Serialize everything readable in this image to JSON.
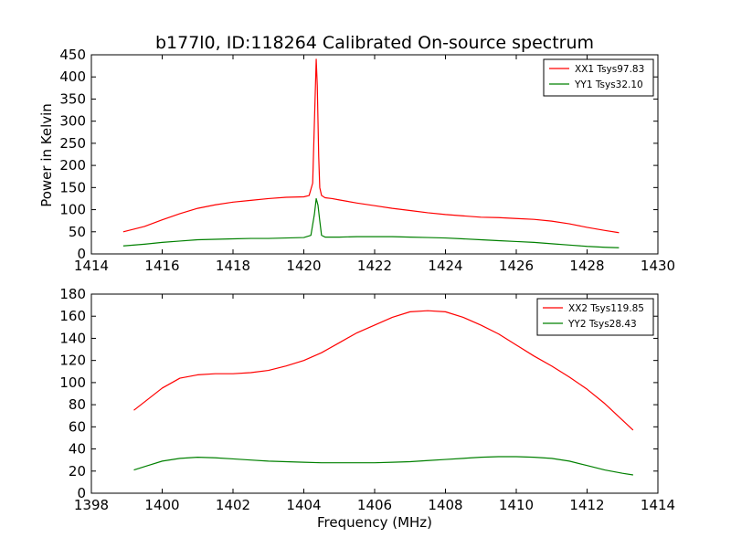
{
  "figure": {
    "title": "b177l0, ID:118264 Calibrated On-source spectrum",
    "xlabel": "Frequency (MHz)",
    "ylabel": "Power in Kelvin"
  },
  "chart_data": [
    {
      "type": "line",
      "title": "b177l0, ID:118264 Calibrated On-source spectrum",
      "xlabel": "",
      "ylabel": "Power in Kelvin",
      "xlim": [
        1414,
        1430
      ],
      "ylim": [
        0,
        450
      ],
      "xticks": [
        "1414",
        "1416",
        "1418",
        "1420",
        "1422",
        "1424",
        "1426",
        "1428",
        "1430"
      ],
      "yticks": [
        "0",
        "50",
        "100",
        "150",
        "200",
        "250",
        "300",
        "350",
        "400",
        "450"
      ],
      "grid": false,
      "legend_position": "top-right",
      "series": [
        {
          "name": "XX1 Tsys97.83",
          "color": "#ff0000",
          "x": [
            1414.9,
            1415.5,
            1416.0,
            1416.5,
            1417.0,
            1417.5,
            1418.0,
            1418.5,
            1419.0,
            1419.5,
            1420.0,
            1420.15,
            1420.25,
            1420.3,
            1420.35,
            1420.38,
            1420.42,
            1420.45,
            1420.5,
            1420.6,
            1420.8,
            1421.0,
            1421.5,
            1422.0,
            1422.5,
            1423.0,
            1423.5,
            1424.0,
            1424.5,
            1425.0,
            1425.5,
            1426.0,
            1426.5,
            1427.0,
            1427.5,
            1428.0,
            1428.5,
            1428.9
          ],
          "y": [
            50,
            62,
            77,
            91,
            103,
            111,
            117,
            121,
            125,
            128,
            129,
            132,
            160,
            300,
            440,
            380,
            220,
            150,
            132,
            127,
            125,
            122,
            115,
            109,
            103,
            98,
            93,
            89,
            86,
            83,
            82,
            80,
            78,
            74,
            68,
            60,
            53,
            48
          ]
        },
        {
          "name": "YY1 Tsys32.10",
          "color": "#008000",
          "x": [
            1414.9,
            1415.5,
            1416.0,
            1416.5,
            1417.0,
            1417.5,
            1418.0,
            1418.5,
            1419.0,
            1419.5,
            1420.0,
            1420.2,
            1420.3,
            1420.35,
            1420.4,
            1420.45,
            1420.5,
            1420.6,
            1420.8,
            1421.0,
            1421.5,
            1422.0,
            1422.5,
            1423.0,
            1423.5,
            1424.0,
            1424.5,
            1425.0,
            1425.5,
            1426.0,
            1426.5,
            1427.0,
            1427.5,
            1428.0,
            1428.5,
            1428.9
          ],
          "y": [
            18,
            22,
            26,
            29,
            32,
            33,
            34,
            35,
            35,
            36,
            37,
            42,
            90,
            125,
            110,
            75,
            42,
            38,
            38,
            38,
            39,
            39,
            39,
            38,
            37,
            36,
            34,
            32,
            30,
            28,
            26,
            23,
            20,
            17,
            15,
            14
          ]
        }
      ]
    },
    {
      "type": "line",
      "title": "",
      "xlabel": "Frequency (MHz)",
      "ylabel": "",
      "xlim": [
        1398,
        1414
      ],
      "ylim": [
        0,
        180
      ],
      "xticks": [
        "1398",
        "1400",
        "1402",
        "1404",
        "1406",
        "1408",
        "1410",
        "1412",
        "1414"
      ],
      "yticks": [
        "0",
        "20",
        "40",
        "60",
        "80",
        "100",
        "120",
        "140",
        "160",
        "180"
      ],
      "grid": false,
      "legend_position": "top-right",
      "series": [
        {
          "name": "XX2 Tsys119.85",
          "color": "#ff0000",
          "x": [
            1399.2,
            1399.6,
            1400.0,
            1400.5,
            1401.0,
            1401.5,
            1402.0,
            1402.5,
            1403.0,
            1403.5,
            1404.0,
            1404.5,
            1405.0,
            1405.5,
            1406.0,
            1406.5,
            1407.0,
            1407.5,
            1408.0,
            1408.5,
            1409.0,
            1409.5,
            1410.0,
            1410.5,
            1411.0,
            1411.5,
            1412.0,
            1412.5,
            1413.0,
            1413.3
          ],
          "y": [
            75,
            85,
            95,
            104,
            107,
            108,
            108,
            109,
            111,
            115,
            120,
            127,
            136,
            145,
            152,
            159,
            164,
            165,
            164,
            159,
            152,
            144,
            134,
            124,
            115,
            105,
            94,
            81,
            66,
            57
          ]
        },
        {
          "name": "YY2 Tsys28.43",
          "color": "#008000",
          "x": [
            1399.2,
            1399.6,
            1400.0,
            1400.5,
            1401.0,
            1401.5,
            1402.0,
            1402.5,
            1403.0,
            1403.5,
            1404.0,
            1404.5,
            1405.0,
            1405.5,
            1406.0,
            1406.5,
            1407.0,
            1407.5,
            1408.0,
            1408.5,
            1409.0,
            1409.5,
            1410.0,
            1410.5,
            1411.0,
            1411.5,
            1412.0,
            1412.5,
            1413.0,
            1413.3
          ],
          "y": [
            21,
            25,
            29,
            31.5,
            32.5,
            32,
            31,
            30,
            29,
            28.5,
            28,
            27.5,
            27.5,
            27.5,
            27.5,
            28,
            28.5,
            29.5,
            30.5,
            31.5,
            32.5,
            33,
            33,
            32.5,
            31.5,
            29,
            25,
            21,
            18,
            16.5
          ]
        }
      ]
    }
  ]
}
